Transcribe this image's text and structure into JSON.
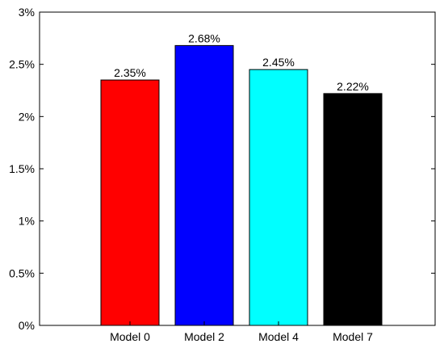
{
  "chart_data": {
    "type": "bar",
    "categories": [
      "Model 0",
      "Model 2",
      "Model 4",
      "Model 7"
    ],
    "values": [
      2.35,
      2.68,
      2.45,
      2.22
    ],
    "data_labels": [
      "2.35%",
      "2.68%",
      "2.45%",
      "2.22%"
    ],
    "bar_colors": [
      "#ff0000",
      "#0000ff",
      "#00ffff",
      "#000000"
    ],
    "title": "",
    "xlabel": "",
    "ylabel": "",
    "ylim": [
      0,
      3
    ],
    "yticks": [
      0,
      0.5,
      1,
      1.5,
      2,
      2.5,
      3
    ],
    "ytick_labels": [
      "0%",
      "0.5%",
      "1%",
      "1.5%",
      "2%",
      "2.5%",
      "3%"
    ],
    "grid": false,
    "legend": "none"
  }
}
